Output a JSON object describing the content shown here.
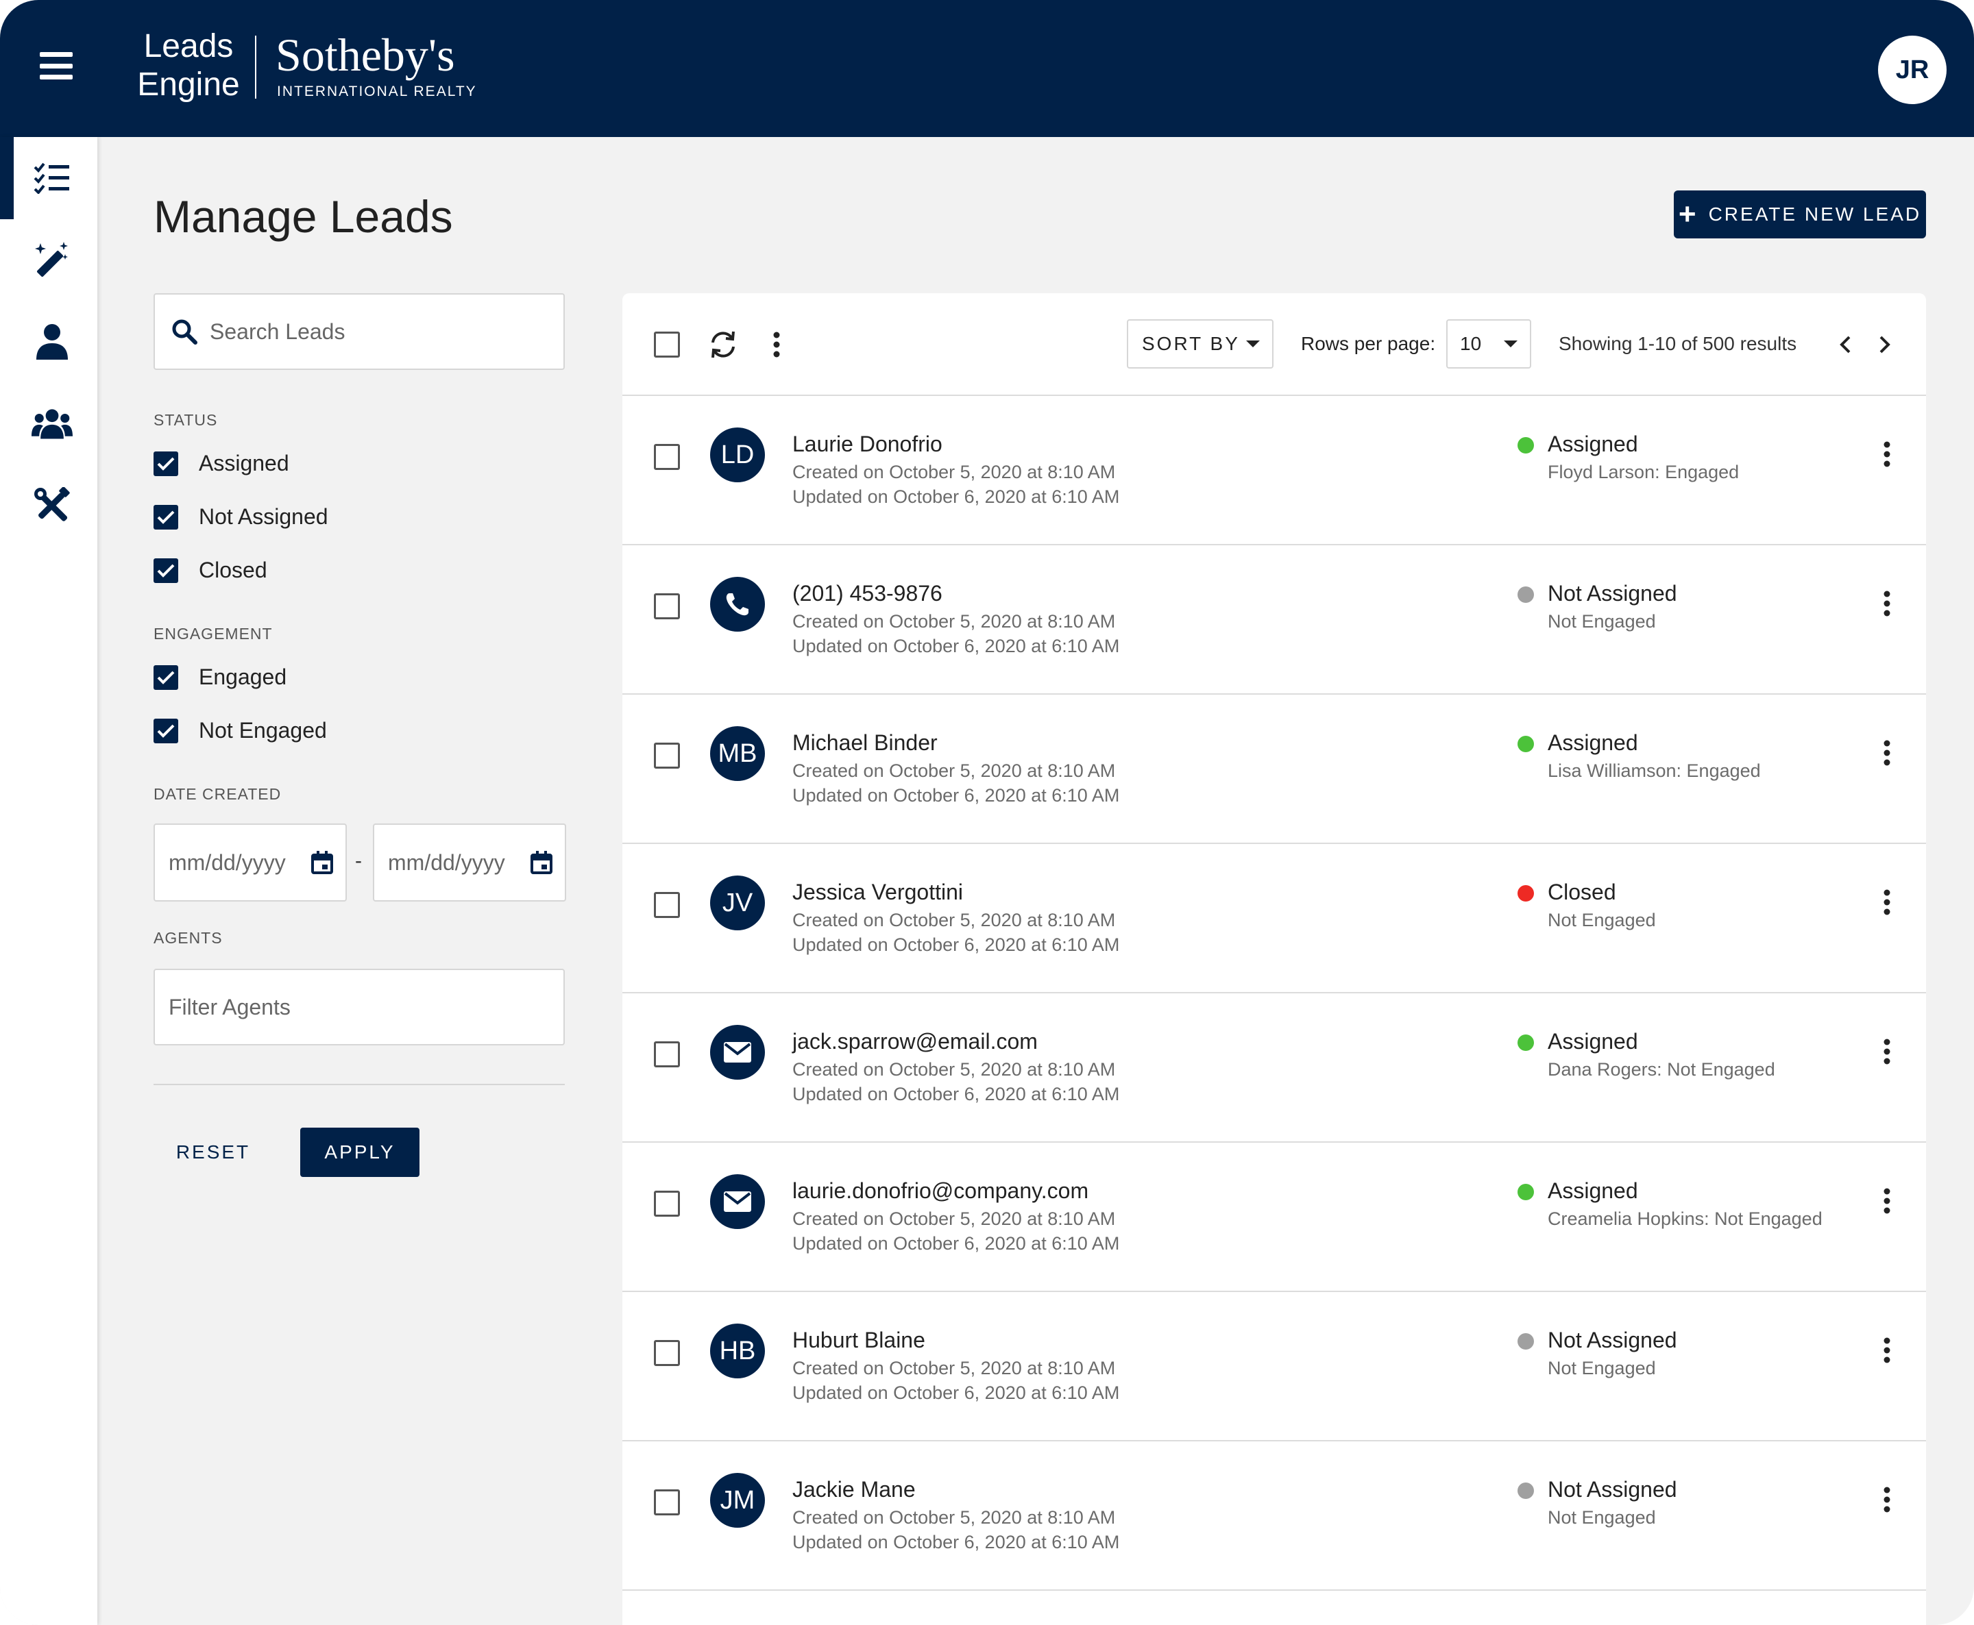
{
  "brand": {
    "leads_engine": "Leads Engine",
    "sothebys": "Sotheby's",
    "international_realty": "INTERNATIONAL REALTY"
  },
  "user": {
    "initials": "JR"
  },
  "nav_icons": [
    "tasks-list-icon",
    "magic-wand-icon",
    "person-icon",
    "group-icon",
    "tools-icon"
  ],
  "page": {
    "title": "Manage Leads",
    "create_button": "CREATE NEW LEAD"
  },
  "filters": {
    "search_placeholder": "Search Leads",
    "status_label": "STATUS",
    "status": [
      {
        "label": "Assigned",
        "checked": true
      },
      {
        "label": "Not Assigned",
        "checked": true
      },
      {
        "label": "Closed",
        "checked": true
      }
    ],
    "engagement_label": "ENGAGEMENT",
    "engagement": [
      {
        "label": "Engaged",
        "checked": true
      },
      {
        "label": "Not Engaged",
        "checked": true
      }
    ],
    "date_created_label": "DATE CREATED",
    "date_from_placeholder": "mm/dd/yyyy",
    "date_separator": "-",
    "date_to_placeholder": "mm/dd/yyyy",
    "agents_label": "AGENTS",
    "agents_placeholder": "Filter Agents",
    "reset": "RESET",
    "apply": "APPLY"
  },
  "toolbar": {
    "sort_by": "SORT BY",
    "rows_per_page_label": "Rows per page:",
    "rows_per_page": "10",
    "showing": "Showing 1-10 of 500 results"
  },
  "colors": {
    "navy": "#012148",
    "assigned": "#4cc23a",
    "not_assigned": "#a0a0a0",
    "closed": "#ee2a24"
  },
  "leads": [
    {
      "avatar_type": "initials",
      "initials": "LD",
      "name": "Laurie Donofrio",
      "created": "Created on October 5, 2020 at 8:10 AM",
      "updated": "Updated on October 6, 2020 at 6:10 AM",
      "status": "Assigned",
      "status_color": "#4cc23a",
      "status_detail": "Floyd Larson: Engaged"
    },
    {
      "avatar_type": "phone",
      "initials": "",
      "name": "(201) 453-9876",
      "created": "Created on October 5, 2020 at 8:10 AM",
      "updated": "Updated on October 6, 2020 at 6:10 AM",
      "status": "Not Assigned",
      "status_color": "#a0a0a0",
      "status_detail": "Not Engaged"
    },
    {
      "avatar_type": "initials",
      "initials": "MB",
      "name": "Michael Binder",
      "created": "Created on October 5, 2020 at 8:10 AM",
      "updated": "Updated on October 6, 2020 at 6:10 AM",
      "status": "Assigned",
      "status_color": "#4cc23a",
      "status_detail": "Lisa Williamson: Engaged"
    },
    {
      "avatar_type": "initials",
      "initials": "JV",
      "name": "Jessica Vergottini",
      "created": "Created on October 5, 2020 at 8:10 AM",
      "updated": "Updated on October 6, 2020 at 6:10 AM",
      "status": "Closed",
      "status_color": "#ee2a24",
      "status_detail": "Not Engaged"
    },
    {
      "avatar_type": "email",
      "initials": "",
      "name": "jack.sparrow@email.com",
      "created": "Created on October 5, 2020 at 8:10 AM",
      "updated": "Updated on October 6, 2020 at 6:10 AM",
      "status": "Assigned",
      "status_color": "#4cc23a",
      "status_detail": "Dana Rogers: Not Engaged"
    },
    {
      "avatar_type": "email",
      "initials": "",
      "name": "laurie.donofrio@company.com",
      "created": "Created on October 5, 2020 at 8:10 AM",
      "updated": "Updated on October 6, 2020 at 6:10 AM",
      "status": "Assigned",
      "status_color": "#4cc23a",
      "status_detail": "Creamelia Hopkins: Not Engaged"
    },
    {
      "avatar_type": "initials",
      "initials": "HB",
      "name": "Huburt Blaine",
      "created": "Created on October 5, 2020 at 8:10 AM",
      "updated": "Updated on October 6, 2020 at 6:10 AM",
      "status": "Not Assigned",
      "status_color": "#a0a0a0",
      "status_detail": "Not Engaged"
    },
    {
      "avatar_type": "initials",
      "initials": "JM",
      "name": "Jackie Mane",
      "created": "Created on October 5, 2020 at 8:10 AM",
      "updated": "Updated on October 6, 2020 at 6:10 AM",
      "status": "Not Assigned",
      "status_color": "#a0a0a0",
      "status_detail": "Not Engaged"
    }
  ]
}
